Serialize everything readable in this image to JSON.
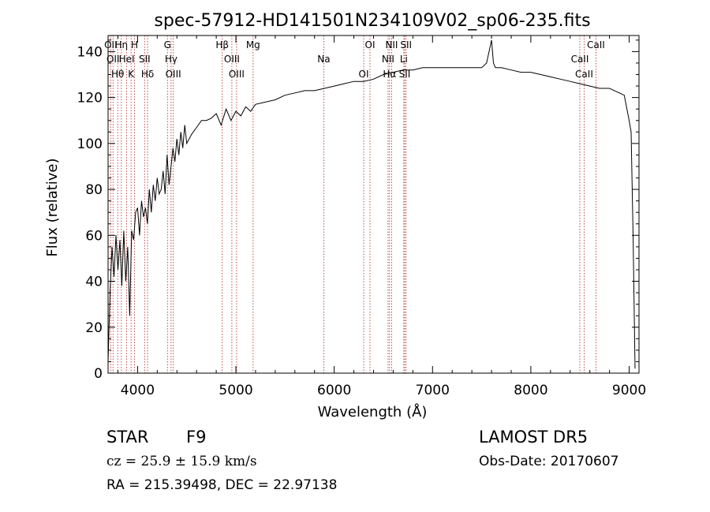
{
  "chart_data": {
    "type": "line",
    "title": "spec-57912-HD141501N234109V02_sp06-235.fits",
    "xlabel": "Wavelength (Å)",
    "ylabel": "Flux (relative)",
    "xlim": [
      3700,
      9100
    ],
    "ylim": [
      0,
      147
    ],
    "x_ticks": [
      4000,
      5000,
      6000,
      7000,
      8000,
      9000
    ],
    "y_ticks": [
      0,
      20,
      40,
      60,
      80,
      100,
      120,
      140
    ],
    "grid": false,
    "legend": "none",
    "line_color": "#000000",
    "marker_color": "#b22222",
    "series": [
      {
        "x": [
          3700,
          3720,
          3740,
          3760,
          3780,
          3800,
          3820,
          3840,
          3860,
          3880,
          3900,
          3920,
          3940,
          3960,
          3980,
          4000,
          4020,
          4040,
          4060,
          4080,
          4100,
          4120,
          4140,
          4160,
          4180,
          4200,
          4220,
          4240,
          4260,
          4280,
          4300,
          4320,
          4340,
          4360,
          4380,
          4400,
          4420,
          4440,
          4460,
          4480,
          4500,
          4550,
          4600,
          4650,
          4700,
          4750,
          4800,
          4850,
          4900,
          4950,
          5000,
          5050,
          5100,
          5150,
          5200,
          5300,
          5400,
          5500,
          5600,
          5700,
          5800,
          5900,
          6000,
          6100,
          6200,
          6300,
          6400,
          6500,
          6600,
          6700,
          6800,
          6900,
          7000,
          7100,
          7200,
          7300,
          7400,
          7500,
          7550,
          7600,
          7620,
          7640,
          7700,
          7800,
          7900,
          8000,
          8100,
          8200,
          8300,
          8400,
          8500,
          8600,
          8700,
          8800,
          8850,
          8900,
          8950,
          9000,
          9020,
          9040,
          9060
        ],
        "y": [
          5,
          35,
          55,
          42,
          60,
          45,
          58,
          38,
          62,
          40,
          55,
          25,
          62,
          58,
          70,
          72,
          60,
          75,
          68,
          72,
          65,
          80,
          70,
          82,
          75,
          85,
          78,
          80,
          88,
          78,
          95,
          82,
          90,
          98,
          92,
          102,
          95,
          105,
          98,
          108,
          100,
          104,
          107,
          110,
          110,
          111,
          113,
          108,
          115,
          110,
          114,
          112,
          116,
          114,
          117,
          118,
          119,
          121,
          122,
          123,
          123,
          124,
          125,
          126,
          127,
          127,
          128,
          130,
          131,
          132,
          132,
          133,
          133,
          133,
          133,
          133,
          133,
          133,
          135,
          145,
          135,
          133,
          133,
          132,
          131,
          131,
          130,
          129,
          128,
          127,
          126,
          125,
          124,
          124,
          123,
          122,
          121,
          110,
          105,
          60,
          2
        ]
      }
    ],
    "lines": [
      {
        "x": 3727,
        "labels": [
          "OII"
        ]
      },
      {
        "x": 3750,
        "labels": [
          "OII"
        ]
      },
      {
        "x": 3798,
        "labels": [
          "Hθ"
        ]
      },
      {
        "x": 3835,
        "labels": [
          "Hη"
        ]
      },
      {
        "x": 3889,
        "labels": [
          "HeI"
        ]
      },
      {
        "x": 3934,
        "labels": [
          "K"
        ]
      },
      {
        "x": 3969,
        "labels": [
          "H"
        ]
      },
      {
        "x": 4072,
        "labels": [
          "SII"
        ]
      },
      {
        "x": 4102,
        "labels": [
          "Hδ"
        ]
      },
      {
        "x": 4304,
        "labels": [
          "G"
        ]
      },
      {
        "x": 4341,
        "labels": [
          "Hγ"
        ]
      },
      {
        "x": 4363,
        "labels": [
          "OIII"
        ]
      },
      {
        "x": 4861,
        "labels": [
          "Hβ"
        ]
      },
      {
        "x": 4959,
        "labels": [
          "OIII"
        ]
      },
      {
        "x": 5007,
        "labels": [
          "OIII"
        ]
      },
      {
        "x": 5175,
        "labels": [
          "Mg"
        ]
      },
      {
        "x": 5894,
        "labels": [
          "Na"
        ]
      },
      {
        "x": 6300,
        "labels": [
          "OI"
        ]
      },
      {
        "x": 6364,
        "labels": [
          "OI"
        ]
      },
      {
        "x": 6548,
        "labels": [
          "NII"
        ]
      },
      {
        "x": 6563,
        "labels": [
          "Hα"
        ]
      },
      {
        "x": 6584,
        "labels": [
          "NII"
        ]
      },
      {
        "x": 6708,
        "labels": [
          "Li"
        ]
      },
      {
        "x": 6717,
        "labels": [
          "SII"
        ]
      },
      {
        "x": 6731,
        "labels": [
          "SII"
        ]
      },
      {
        "x": 8498,
        "labels": [
          "CaII"
        ]
      },
      {
        "x": 8542,
        "labels": [
          "CaII"
        ]
      },
      {
        "x": 8662,
        "labels": [
          "CaII"
        ]
      }
    ]
  },
  "annotations": {
    "class": "STAR",
    "subclass": "F9",
    "survey": "LAMOST DR5",
    "cz": "cz = 25.9 ± 15.9 km/s",
    "obs_date": "Obs-Date: 20170607",
    "coords": "RA = 215.39498, DEC =  22.97138"
  }
}
